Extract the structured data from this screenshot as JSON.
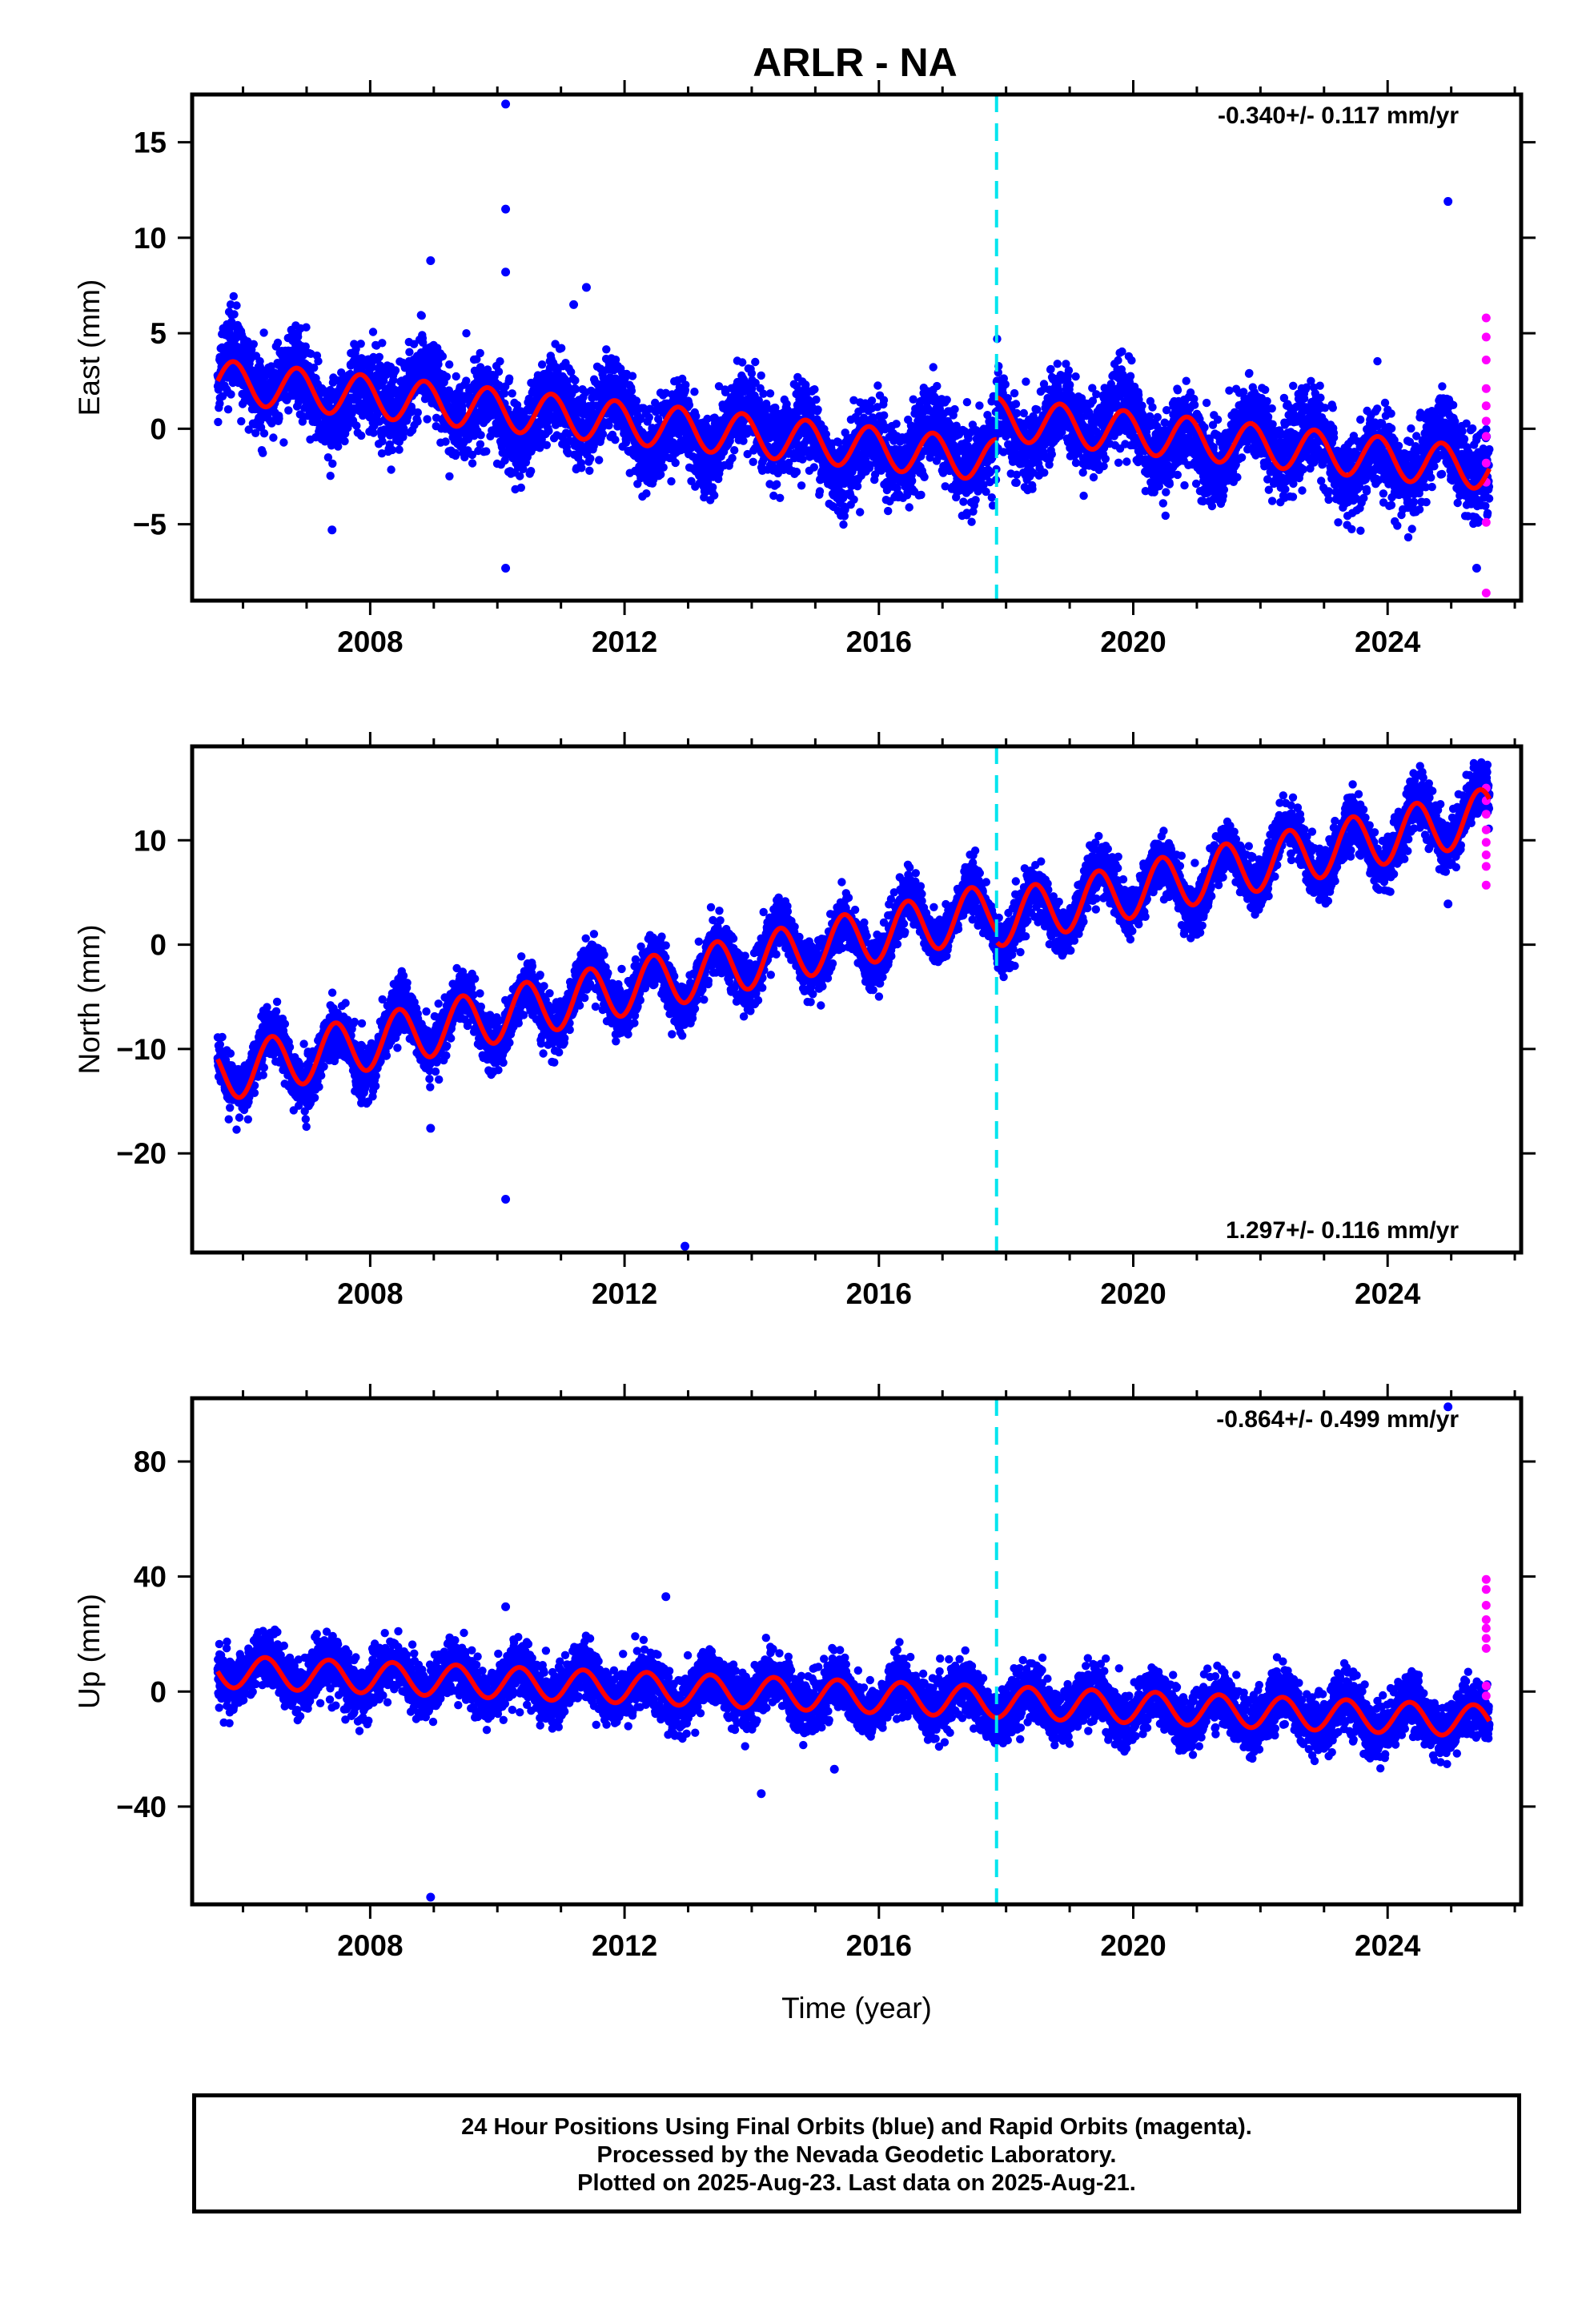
{
  "title": "ARLR - NA",
  "colors": {
    "final": "#0000ff",
    "rapid": "#ff00ff",
    "model": "#ff0000",
    "equipment_change": "#00e5ee",
    "frame": "#000000"
  },
  "chart_data": [
    {
      "type": "scatter",
      "panel": "east",
      "ylabel": "East (mm)",
      "xlabel": "",
      "rate_label": "-0.340+/- 0.117 mm/yr",
      "rate_position": "top-right",
      "xlim": [
        2005.2,
        2026.1
      ],
      "ylim": [
        -9.0,
        17.5
      ],
      "xticks": [
        2008,
        2012,
        2016,
        2020,
        2024
      ],
      "xtick_labels": [
        "2008",
        "2012",
        "2016",
        "2020",
        "2024"
      ],
      "yticks": [
        -5,
        0,
        5,
        10,
        15
      ],
      "ytick_labels": [
        "−5",
        "0",
        "5",
        "10",
        "15"
      ],
      "model": {
        "start": 2005.6,
        "end": 2025.6,
        "offset_at_start": 2.5,
        "rate": -0.34,
        "step_year": 2017.85,
        "step_size": 2.2,
        "annual_amplitude": 1.1,
        "annual_phase_year": 2005.85
      },
      "cloud_halfwidth": 1.9,
      "outliers": [
        [
          2010.13,
          17.0
        ],
        [
          2010.13,
          11.5
        ],
        [
          2010.13,
          8.2
        ],
        [
          2008.95,
          8.8
        ],
        [
          2011.4,
          7.4
        ],
        [
          2011.2,
          6.5
        ],
        [
          2010.13,
          -7.3
        ],
        [
          2024.95,
          11.9
        ],
        [
          2025.4,
          -7.3
        ],
        [
          2007.4,
          -5.3
        ]
      ],
      "rapid_points": [
        [
          2025.55,
          5.8
        ],
        [
          2025.55,
          4.8
        ],
        [
          2025.55,
          3.6
        ],
        [
          2025.55,
          2.1
        ],
        [
          2025.55,
          1.2
        ],
        [
          2025.55,
          0.4
        ],
        [
          2025.55,
          -0.4
        ],
        [
          2025.55,
          -1.8
        ],
        [
          2025.55,
          -2.8
        ],
        [
          2025.55,
          -4.9
        ],
        [
          2025.55,
          -8.6
        ]
      ],
      "equipment_change_year": 2017.85
    },
    {
      "type": "scatter",
      "panel": "north",
      "ylabel": "North (mm)",
      "xlabel": "",
      "rate_label": "1.297+/- 0.116 mm/yr",
      "rate_position": "bottom-right",
      "xlim": [
        2005.2,
        2026.1
      ],
      "ylim": [
        -29.5,
        19.0
      ],
      "xticks": [
        2008,
        2012,
        2016,
        2020,
        2024
      ],
      "xtick_labels": [
        "2008",
        "2012",
        "2016",
        "2020",
        "2024"
      ],
      "yticks": [
        -20,
        -10,
        0,
        10
      ],
      "ytick_labels": [
        "−20",
        "−10",
        "0",
        "10"
      ],
      "model": {
        "start": 2005.6,
        "end": 2025.6,
        "offset_at_start": -12.5,
        "rate": 1.297,
        "step_year": 2017.85,
        "step_size": -1.0,
        "annual_amplitude": 2.6,
        "annual_phase_year": 2005.45
      },
      "cloud_halfwidth": 2.2,
      "outliers": [
        [
          2008.95,
          -17.6
        ],
        [
          2010.13,
          -24.4
        ],
        [
          2012.95,
          -28.9
        ],
        [
          2024.95,
          3.9
        ]
      ],
      "rapid_points": [
        [
          2025.55,
          15.0
        ],
        [
          2025.55,
          13.8
        ],
        [
          2025.55,
          12.5
        ],
        [
          2025.55,
          11.0
        ],
        [
          2025.55,
          9.8
        ],
        [
          2025.55,
          8.6
        ],
        [
          2025.55,
          7.5
        ],
        [
          2025.55,
          5.7
        ]
      ],
      "equipment_change_year": 2017.85
    },
    {
      "type": "scatter",
      "panel": "up",
      "ylabel": "Up (mm)",
      "xlabel": "Time (year)",
      "rate_label": "-0.864+/- 0.499 mm/yr",
      "rate_position": "top-right",
      "xlim": [
        2005.2,
        2026.1
      ],
      "ylim": [
        -74,
        102
      ],
      "xticks": [
        2008,
        2012,
        2016,
        2020,
        2024
      ],
      "xtick_labels": [
        "2008",
        "2012",
        "2016",
        "2020",
        "2024"
      ],
      "yticks": [
        -40,
        0,
        40,
        80
      ],
      "ytick_labels": [
        "−40",
        "0",
        "40",
        "80"
      ],
      "model": {
        "start": 2005.6,
        "end": 2025.6,
        "offset_at_start": 7.0,
        "rate": -0.864,
        "step_year": 2017.85,
        "step_size": 0.0,
        "annual_amplitude": 5.5,
        "annual_phase_year": 2005.35
      },
      "cloud_halfwidth": 8.5,
      "outliers": [
        [
          2008.95,
          -71.5
        ],
        [
          2010.13,
          29.5
        ],
        [
          2012.65,
          33.0
        ],
        [
          2014.15,
          -35.5
        ],
        [
          2015.3,
          -27.0
        ],
        [
          2024.95,
          99.0
        ]
      ],
      "rapid_points": [
        [
          2025.55,
          39.0
        ],
        [
          2025.55,
          35.5
        ],
        [
          2025.55,
          30.0
        ],
        [
          2025.55,
          25.0
        ],
        [
          2025.55,
          22.0
        ],
        [
          2025.55,
          18.5
        ],
        [
          2025.55,
          15.0
        ],
        [
          2025.55,
          2.0
        ],
        [
          2025.55,
          -1.5
        ]
      ],
      "equipment_change_year": 2017.85
    }
  ],
  "footer": {
    "line1": "24 Hour Positions Using Final Orbits (blue) and Rapid Orbits (magenta).",
    "line2": "Processed by the Nevada Geodetic Laboratory.",
    "line3": "Plotted on 2025-Aug-23. Last data on 2025-Aug-21."
  }
}
